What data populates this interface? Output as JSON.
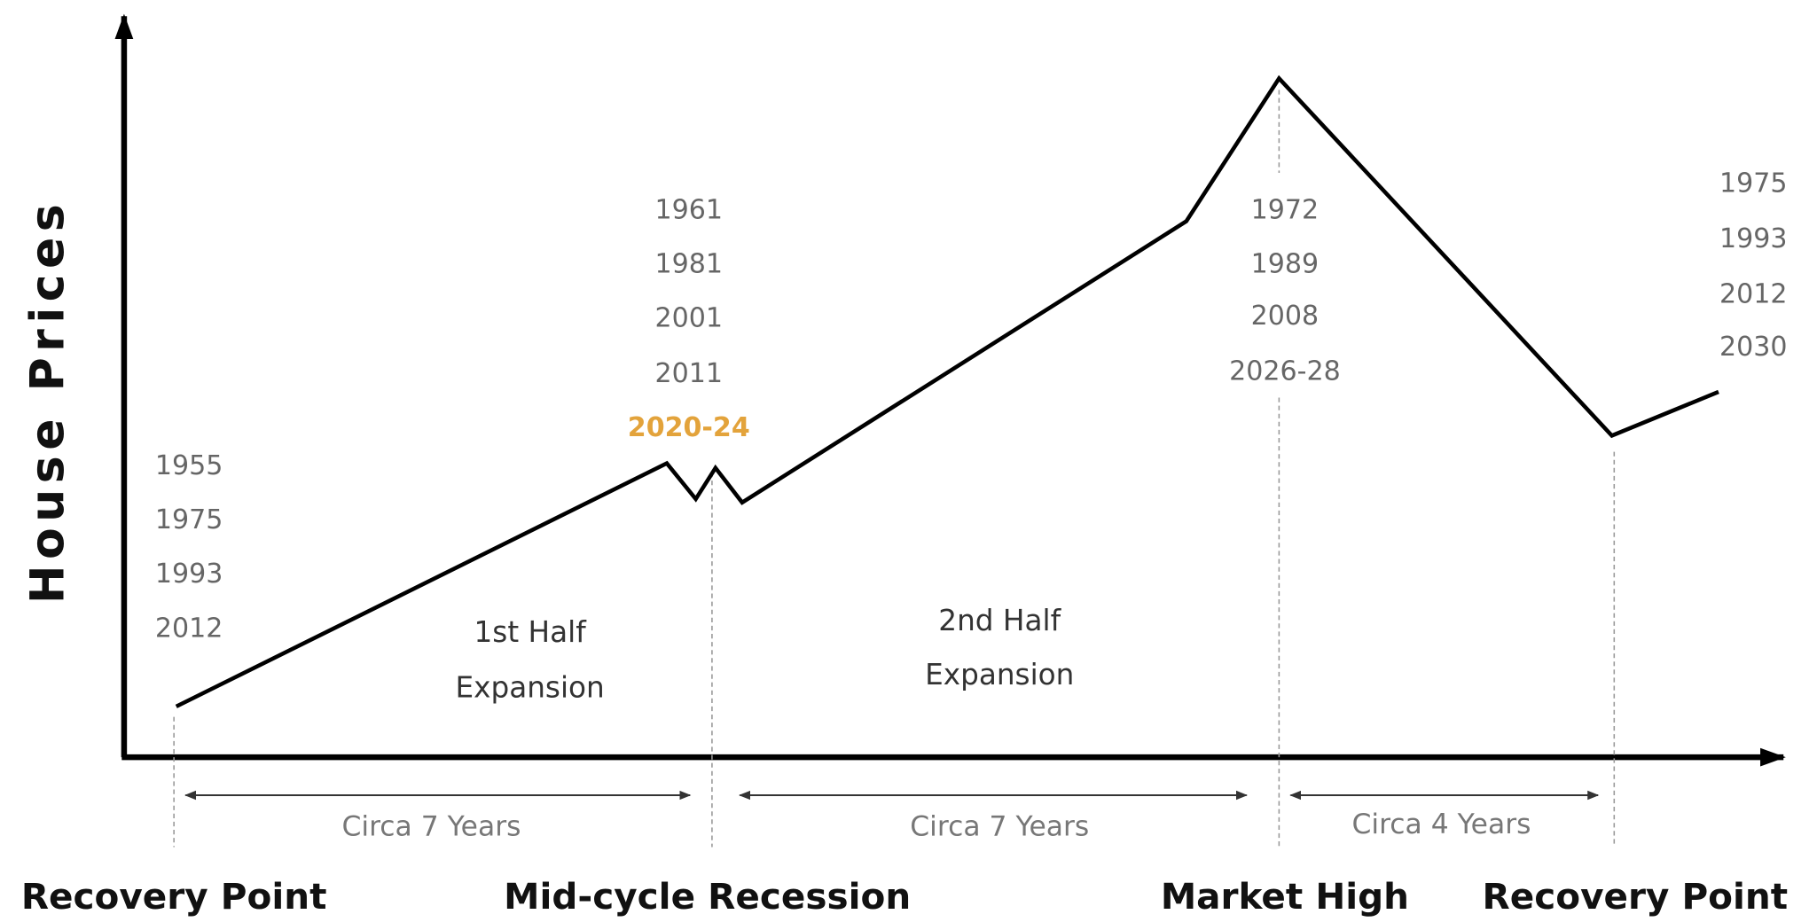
{
  "y_axis_label": "House Prices",
  "year_groups": [
    {
      "years": [
        "1955",
        "1975",
        "1993",
        "2012"
      ]
    },
    {
      "years": [
        "1961",
        "1981",
        "2001",
        "2011",
        "2020-24"
      ]
    },
    {
      "years": [
        "1972",
        "1989",
        "2008",
        "2026-28"
      ]
    },
    {
      "years": [
        "1975",
        "1993",
        "2012",
        "2030"
      ]
    }
  ],
  "phases": [
    {
      "lines": [
        "1st Half",
        "Expansion"
      ]
    },
    {
      "lines": [
        "2nd Half",
        "Expansion"
      ]
    }
  ],
  "spans": [
    "Circa 7 Years",
    "Circa 7 Years",
    "Circa 4 Years"
  ],
  "stages": [
    "Recovery Point",
    "Mid-cycle Recession",
    "Market High",
    "Recovery Point"
  ]
}
